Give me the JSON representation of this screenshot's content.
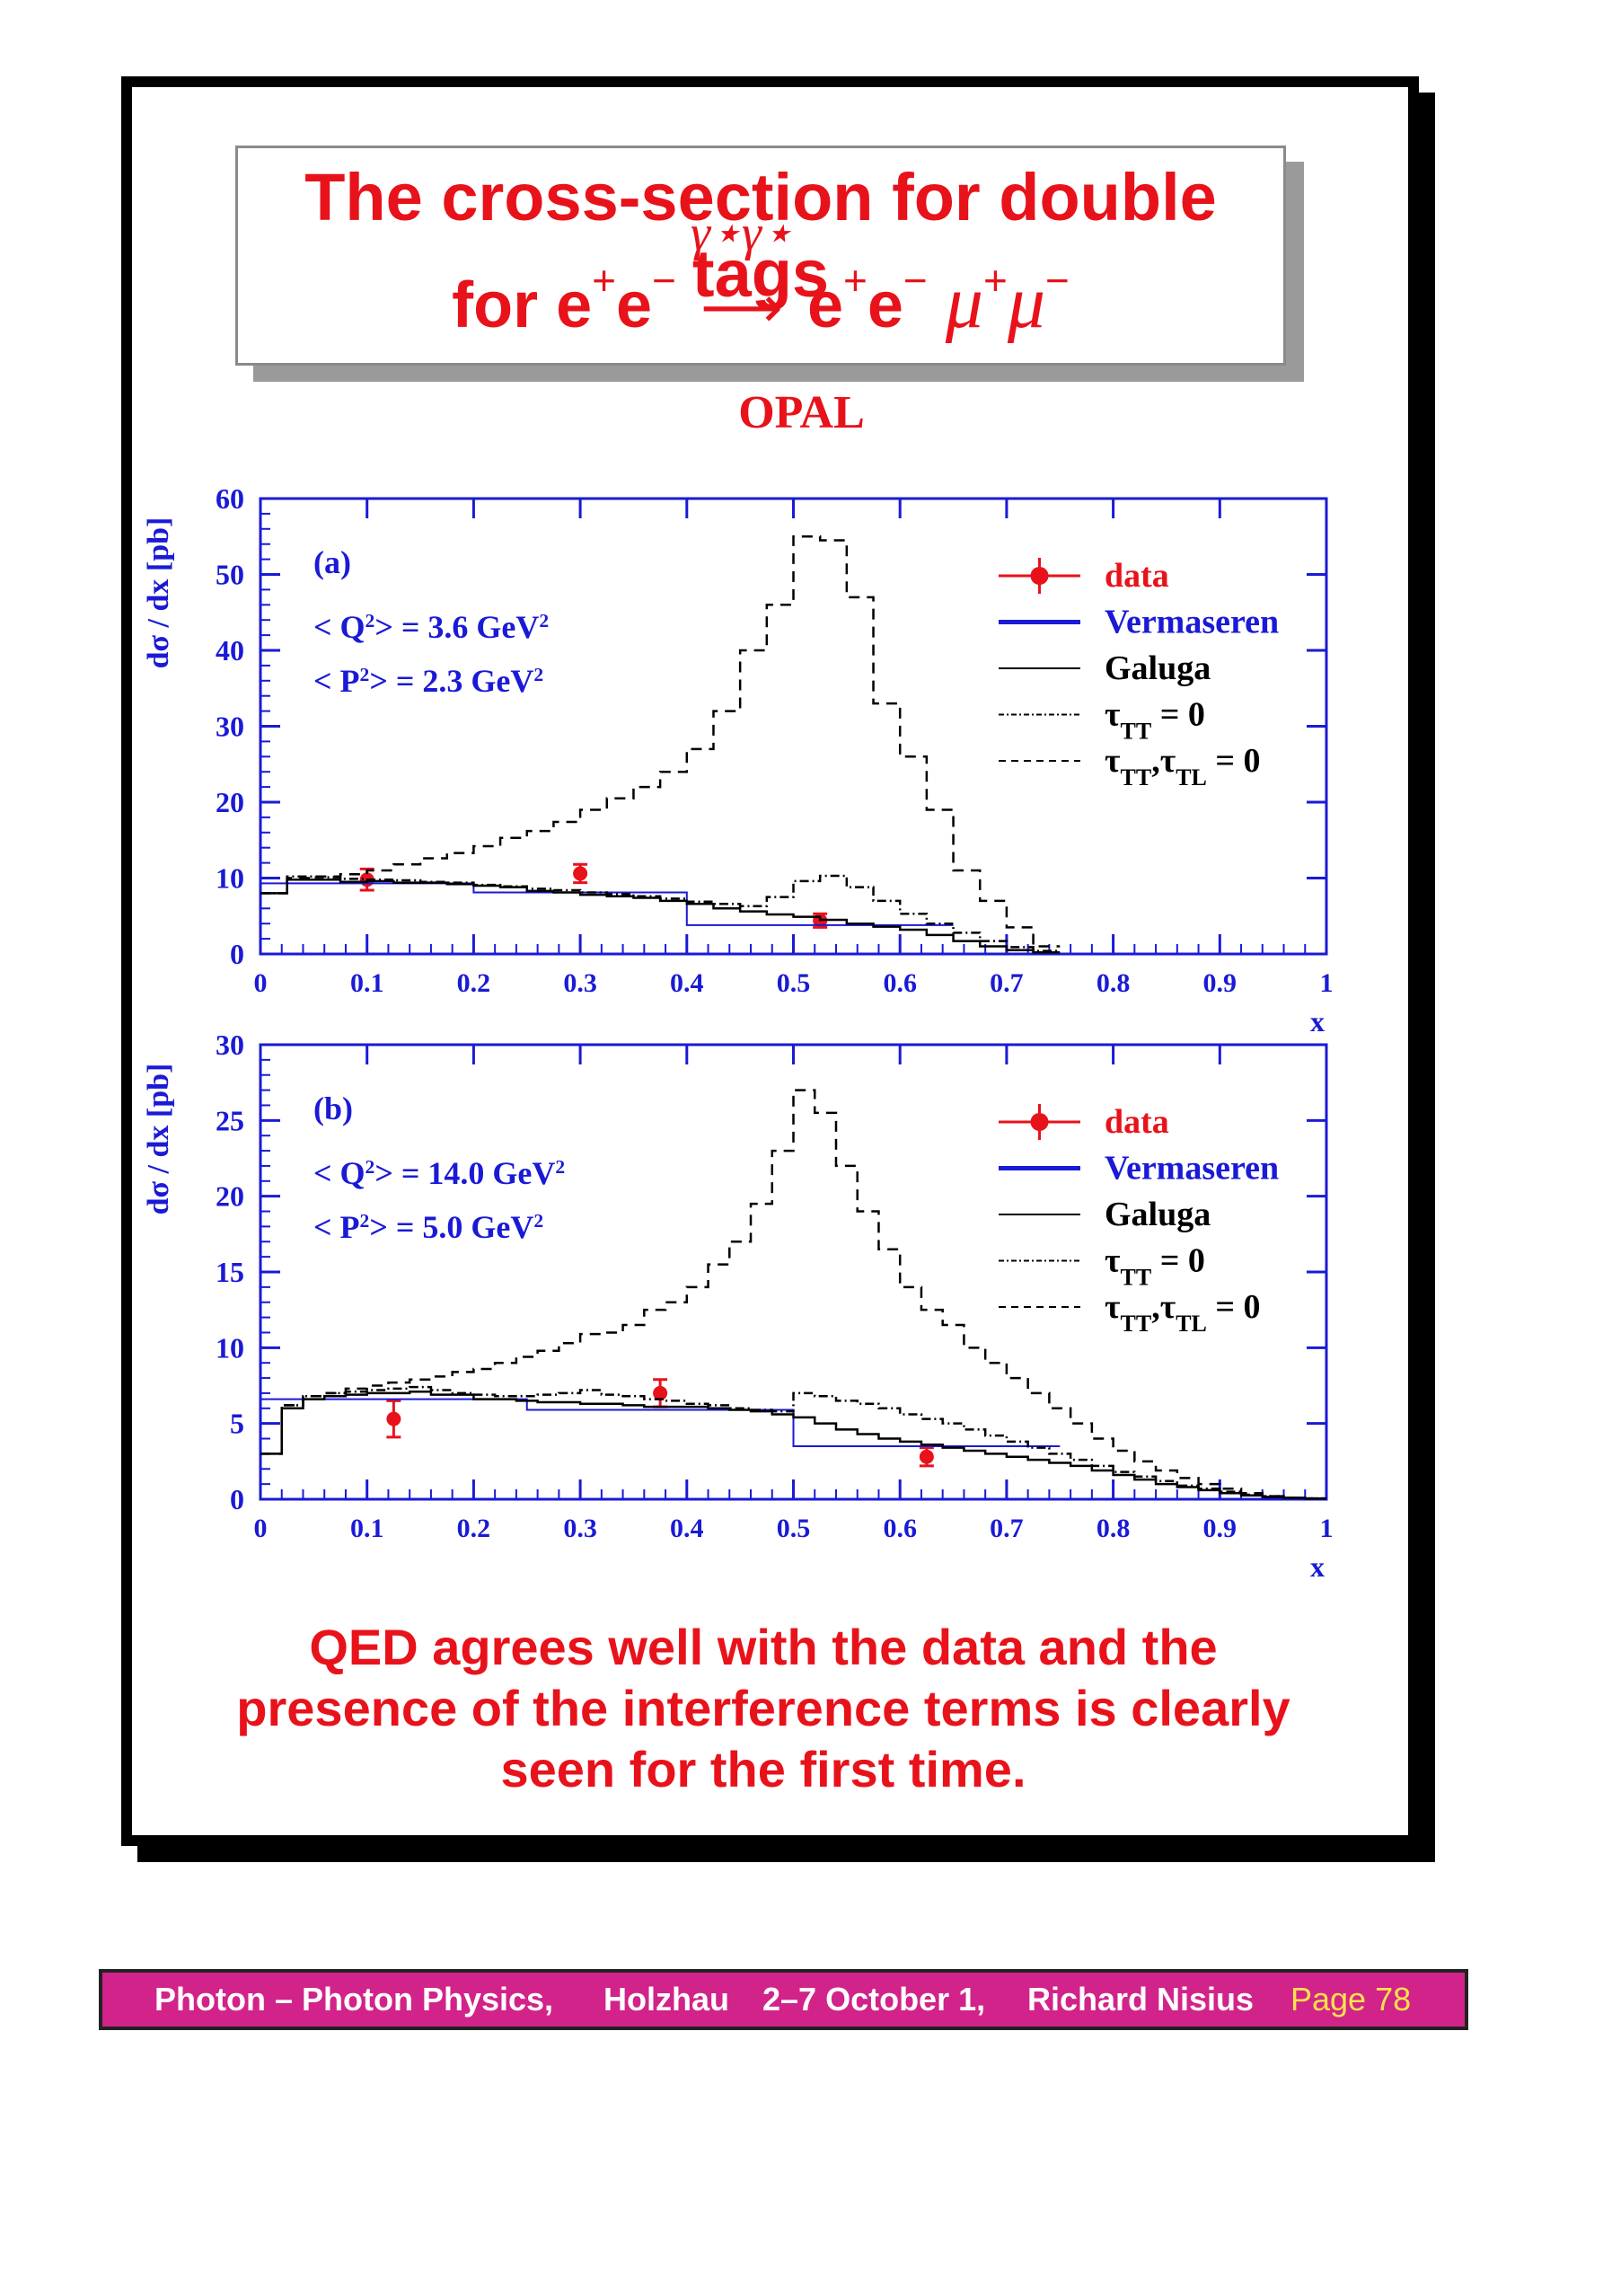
{
  "title": {
    "line1": "The cross-section for double tags",
    "line2_prefix": "for e",
    "sup_plus": "+",
    "sup_minus": "−",
    "e_letter": "e",
    "arrow_label": "γ⋆γ⋆",
    "arrow": "⟶",
    "mu": "μ"
  },
  "experiment_label": "OPAL",
  "conclusion": {
    "line1": "QED agrees well with the data and the",
    "line2": "presence of the interference terms is clearly",
    "line3": "seen for the first time."
  },
  "footer": {
    "talk": "Photon – Photon Physics,",
    "place": "Holzhau",
    "date": "2–7 October 1,",
    "author": "Richard Nisius",
    "page": "Page 78"
  },
  "colors": {
    "red": "#e8121b",
    "blue": "#1a1ad6",
    "black": "#000000",
    "footer": "#d1238a"
  },
  "chart_data": [
    {
      "type": "line",
      "panel_label": "(a)",
      "annotations": [
        "< Q²> = 3.6 GeV²",
        "< P²> = 2.3 GeV²"
      ],
      "xlabel": "x",
      "ylabel": "dσ / dx [pb]",
      "xlim": [
        0,
        1
      ],
      "ylim": [
        0,
        60
      ],
      "xticks": [
        "0",
        "0.1",
        "0.2",
        "0.3",
        "0.4",
        "0.5",
        "0.6",
        "0.7",
        "0.8",
        "0.9",
        "1"
      ],
      "yticks": [
        "0",
        "10",
        "20",
        "30",
        "40",
        "50",
        "60"
      ],
      "legend_position": "top-right",
      "series": [
        {
          "name": "data",
          "style": "points",
          "color": "#e8121b",
          "x": [
            0.1,
            0.3,
            0.525
          ],
          "y": [
            9.8,
            10.6,
            4.4
          ],
          "err": [
            1.4,
            1.2,
            0.9
          ]
        },
        {
          "name": "Vermaseren",
          "style": "step",
          "color": "#1a1ad6",
          "edges": [
            0,
            0.2,
            0.4,
            0.65
          ],
          "values": [
            9.3,
            8.1,
            3.8
          ]
        },
        {
          "name": "Galuga",
          "style": "step",
          "color": "#000000",
          "edges": [
            0,
            0.025,
            0.05,
            0.075,
            0.1,
            0.125,
            0.15,
            0.175,
            0.2,
            0.225,
            0.25,
            0.275,
            0.3,
            0.325,
            0.35,
            0.375,
            0.4,
            0.425,
            0.45,
            0.475,
            0.5,
            0.525,
            0.55,
            0.575,
            0.6,
            0.625,
            0.65,
            0.675,
            0.7,
            0.725,
            0.75
          ],
          "values": [
            8,
            9.8,
            9.8,
            9.5,
            9.6,
            9.4,
            9.4,
            9.2,
            9,
            8.8,
            8.3,
            8.1,
            7.8,
            7.6,
            7.4,
            7,
            6.6,
            6,
            5.6,
            5.2,
            4.9,
            4.5,
            4,
            3.6,
            3.2,
            2.5,
            1.7,
            1,
            0.5,
            0.2
          ]
        },
        {
          "name": "τTT = 0",
          "style": "step-dashdot",
          "color": "#000000",
          "edges": [
            0,
            0.025,
            0.05,
            0.075,
            0.1,
            0.125,
            0.15,
            0.175,
            0.2,
            0.225,
            0.25,
            0.275,
            0.3,
            0.325,
            0.35,
            0.375,
            0.4,
            0.425,
            0.45,
            0.475,
            0.5,
            0.525,
            0.55,
            0.575,
            0.6,
            0.625,
            0.65,
            0.675,
            0.7,
            0.725,
            0.75
          ],
          "values": [
            8,
            10.2,
            10.1,
            9.9,
            9.8,
            9.7,
            9.5,
            9.4,
            9.1,
            8.9,
            8.6,
            8.4,
            8.1,
            7.9,
            7.6,
            7.3,
            6.9,
            6.6,
            6.3,
            7.5,
            9.6,
            10.3,
            8.8,
            7,
            5.3,
            4,
            2.8,
            1.7,
            0.9,
            0.4
          ]
        },
        {
          "name": "τTT,τTL = 0",
          "style": "step-dashed",
          "color": "#000000",
          "edges": [
            0,
            0.025,
            0.05,
            0.075,
            0.1,
            0.125,
            0.15,
            0.175,
            0.2,
            0.225,
            0.25,
            0.275,
            0.3,
            0.325,
            0.35,
            0.375,
            0.4,
            0.425,
            0.45,
            0.475,
            0.5,
            0.525,
            0.55,
            0.575,
            0.6,
            0.625,
            0.65,
            0.675,
            0.7,
            0.725,
            0.75
          ],
          "values": [
            8,
            10,
            10.2,
            10.5,
            11,
            11.8,
            12.6,
            13.3,
            14.2,
            15.3,
            16.2,
            17.4,
            19,
            20.5,
            22,
            24,
            27,
            32,
            40,
            46,
            55,
            54.5,
            47,
            33,
            26,
            19,
            11,
            7,
            3.5,
            1
          ]
        }
      ]
    },
    {
      "type": "line",
      "panel_label": "(b)",
      "annotations": [
        "< Q²> = 14.0 GeV²",
        "< P²> =  5.0 GeV²"
      ],
      "xlabel": "x",
      "ylabel": "dσ / dx [pb]",
      "xlim": [
        0,
        1
      ],
      "ylim": [
        0,
        30
      ],
      "xticks": [
        "0",
        "0.1",
        "0.2",
        "0.3",
        "0.4",
        "0.5",
        "0.6",
        "0.7",
        "0.8",
        "0.9",
        "1"
      ],
      "yticks": [
        "0",
        "5",
        "10",
        "15",
        "20",
        "25",
        "30"
      ],
      "legend_position": "top-right",
      "series": [
        {
          "name": "data",
          "style": "points",
          "color": "#e8121b",
          "x": [
            0.125,
            0.375,
            0.625
          ],
          "y": [
            5.3,
            7.0,
            2.8
          ],
          "err": [
            1.2,
            0.9,
            0.6
          ]
        },
        {
          "name": "Vermaseren",
          "style": "step",
          "color": "#1a1ad6",
          "edges": [
            0,
            0.25,
            0.5,
            0.75
          ],
          "values": [
            6.6,
            5.9,
            3.5
          ]
        },
        {
          "name": "Galuga",
          "style": "step",
          "color": "#000000",
          "edges": [
            0,
            0.02,
            0.04,
            0.06,
            0.08,
            0.1,
            0.12,
            0.14,
            0.16,
            0.18,
            0.2,
            0.22,
            0.24,
            0.26,
            0.28,
            0.3,
            0.32,
            0.34,
            0.36,
            0.38,
            0.4,
            0.42,
            0.44,
            0.46,
            0.48,
            0.5,
            0.52,
            0.54,
            0.56,
            0.58,
            0.6,
            0.62,
            0.64,
            0.66,
            0.68,
            0.7,
            0.72,
            0.74,
            0.76,
            0.78,
            0.8,
            0.82,
            0.84,
            0.86,
            0.88,
            0.9,
            0.92,
            0.94,
            0.96,
            0.98,
            1
          ],
          "values": [
            3,
            6,
            6.6,
            6.8,
            6.9,
            7,
            7,
            7.1,
            6.9,
            6.9,
            6.6,
            6.6,
            6.5,
            6.4,
            6.4,
            6.3,
            6.3,
            6.2,
            6.1,
            6.1,
            6.1,
            6.0,
            5.9,
            5.8,
            5.6,
            5.4,
            5,
            4.6,
            4.3,
            4.0,
            3.8,
            3.6,
            3.4,
            3.2,
            3.0,
            2.8,
            2.6,
            2.4,
            2.2,
            1.9,
            1.6,
            1.3,
            1.0,
            0.8,
            0.6,
            0.4,
            0.25,
            0.15,
            0.1,
            0.05
          ]
        },
        {
          "name": "τTT = 0",
          "style": "step-dashdot",
          "color": "#000000",
          "edges": [
            0,
            0.02,
            0.04,
            0.06,
            0.08,
            0.1,
            0.12,
            0.14,
            0.16,
            0.18,
            0.2,
            0.22,
            0.24,
            0.26,
            0.28,
            0.3,
            0.32,
            0.34,
            0.36,
            0.38,
            0.4,
            0.42,
            0.44,
            0.46,
            0.48,
            0.5,
            0.52,
            0.54,
            0.56,
            0.58,
            0.6,
            0.62,
            0.64,
            0.66,
            0.68,
            0.7,
            0.72,
            0.74,
            0.76,
            0.78,
            0.8,
            0.82,
            0.84,
            0.86,
            0.88,
            0.9,
            0.92,
            0.94,
            0.96,
            0.98,
            1
          ],
          "values": [
            3,
            6.2,
            6.8,
            7,
            7.1,
            7.2,
            7.3,
            7.4,
            7.2,
            7.0,
            6.9,
            6.8,
            6.8,
            6.9,
            7.0,
            7.2,
            6.9,
            6.8,
            6.6,
            6.5,
            6.3,
            6.2,
            6.0,
            5.9,
            5.8,
            7.0,
            6.8,
            6.5,
            6.3,
            6.0,
            5.6,
            5.3,
            5.0,
            4.6,
            4.2,
            3.8,
            3.4,
            3.0,
            2.6,
            2.2,
            1.8,
            1.5,
            1.2,
            0.9,
            0.7,
            0.5,
            0.3,
            0.2,
            0.1,
            0.05
          ]
        },
        {
          "name": "τTT,τTL = 0",
          "style": "step-dashed",
          "color": "#000000",
          "edges": [
            0,
            0.02,
            0.04,
            0.06,
            0.08,
            0.1,
            0.12,
            0.14,
            0.16,
            0.18,
            0.2,
            0.22,
            0.24,
            0.26,
            0.28,
            0.3,
            0.32,
            0.34,
            0.36,
            0.38,
            0.4,
            0.42,
            0.44,
            0.46,
            0.48,
            0.5,
            0.52,
            0.54,
            0.56,
            0.58,
            0.6,
            0.62,
            0.64,
            0.66,
            0.68,
            0.7,
            0.72,
            0.74,
            0.76,
            0.78,
            0.8,
            0.82,
            0.84,
            0.86,
            0.88,
            0.9,
            0.92,
            0.94,
            0.96,
            0.98,
            1
          ],
          "values": [
            3,
            6.2,
            6.8,
            7,
            7.3,
            7.5,
            7.7,
            7.9,
            8.1,
            8.4,
            8.6,
            9,
            9.4,
            9.8,
            10.3,
            10.9,
            11,
            11.5,
            12.5,
            13,
            14,
            15.5,
            17,
            19.5,
            23,
            27,
            25.5,
            22,
            19,
            16.5,
            14,
            12.5,
            11.5,
            10,
            9,
            8,
            7,
            6,
            5,
            4,
            3.2,
            2.5,
            1.9,
            1.4,
            1.0,
            0.7,
            0.4,
            0.2,
            0.1,
            0.05
          ]
        }
      ]
    }
  ]
}
